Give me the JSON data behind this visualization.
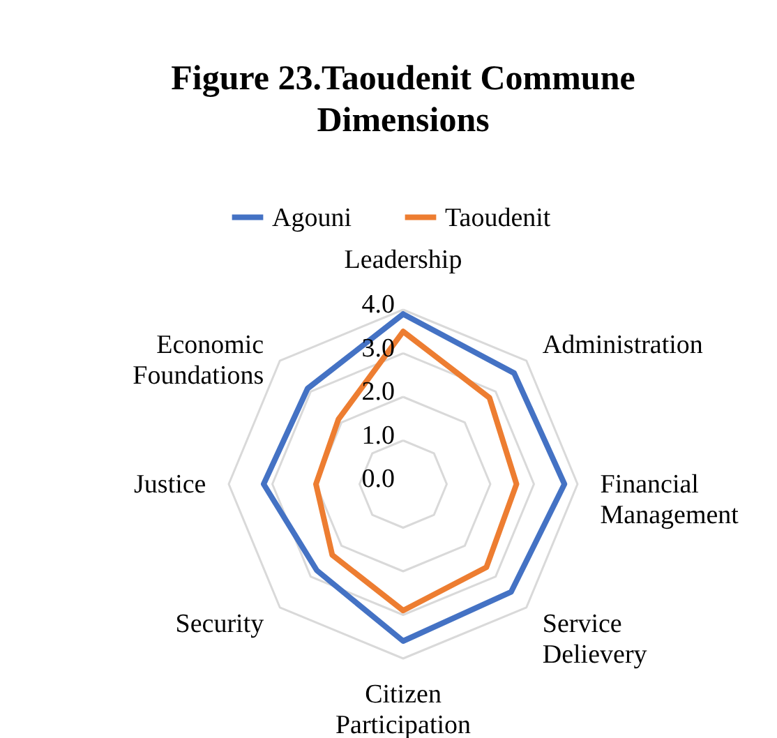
{
  "chart_data": {
    "type": "radar",
    "title": "Figure 23.Taoudenit Commune Dimensions",
    "categories": [
      "Leadership",
      "Administration",
      "Financial Management",
      "Service Delievery",
      "Citizen Participation",
      "Security",
      "Justice",
      "Economic Foundations"
    ],
    "series": [
      {
        "name": "Agouni",
        "color": "#4472c4",
        "values": [
          3.9,
          3.6,
          3.7,
          3.5,
          3.6,
          2.8,
          3.2,
          3.1
        ]
      },
      {
        "name": "Taoudenit",
        "color": "#ed7d31",
        "values": [
          3.5,
          2.8,
          2.6,
          2.7,
          2.9,
          2.3,
          2.0,
          2.1
        ]
      }
    ],
    "ylim": [
      0,
      4
    ],
    "yticks": [
      {
        "value": 0,
        "label": "0.0"
      },
      {
        "value": 1,
        "label": "1.0"
      },
      {
        "value": 2,
        "label": "2.0"
      },
      {
        "value": 3,
        "label": "3.0"
      },
      {
        "value": 4,
        "label": "4.0"
      }
    ],
    "grid": true,
    "legend": "top"
  }
}
